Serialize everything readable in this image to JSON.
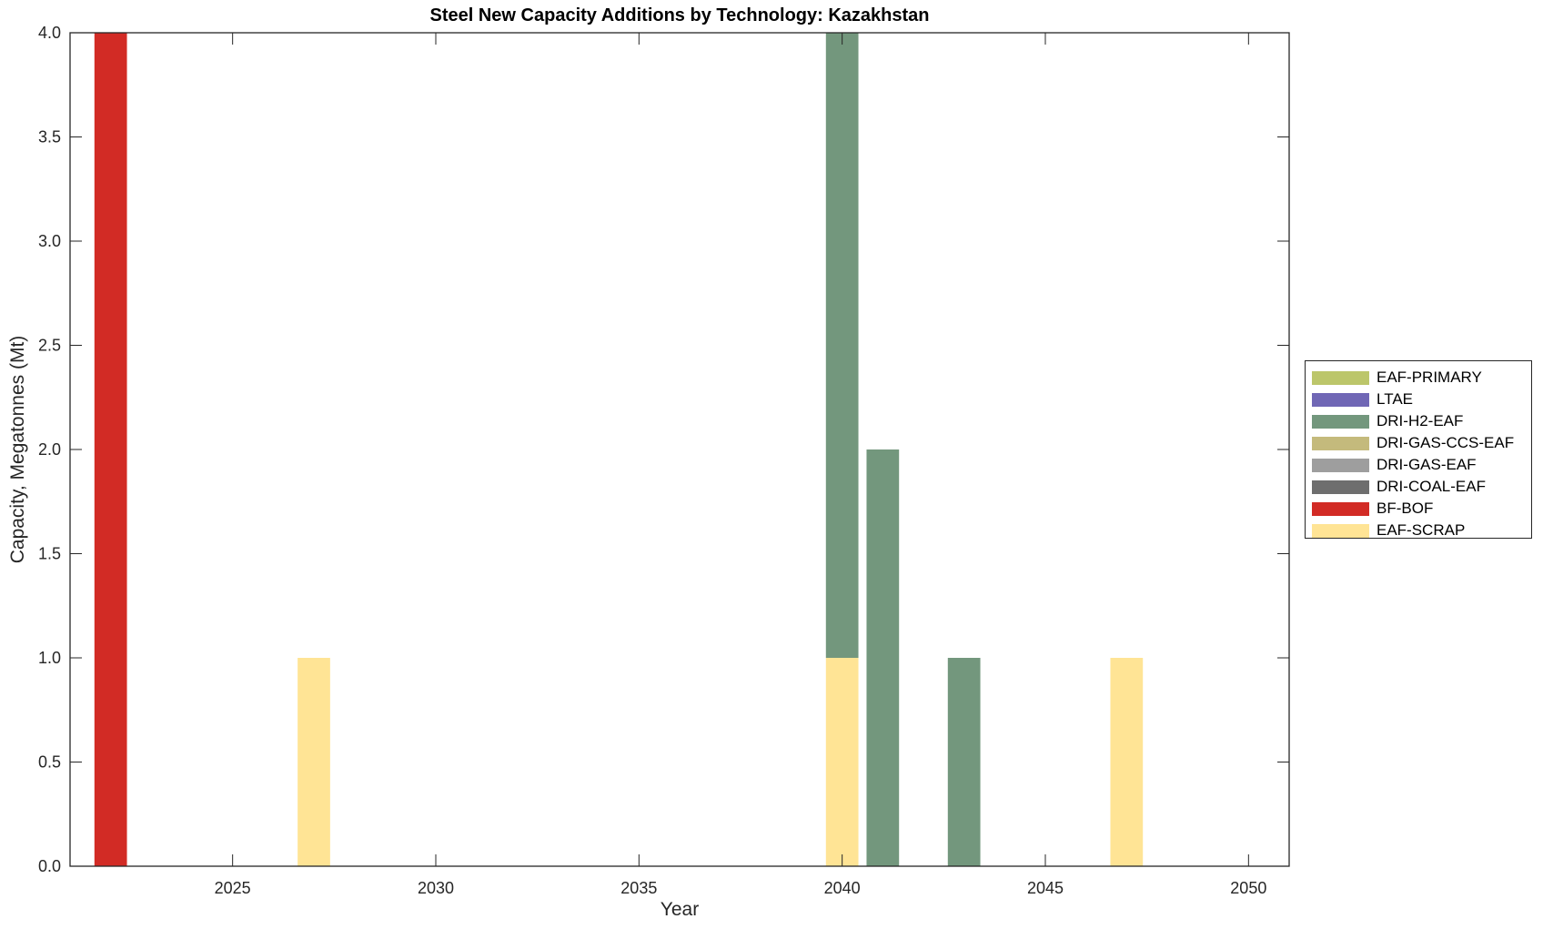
{
  "chart_data": {
    "type": "bar",
    "stacked": true,
    "title": "Steel New Capacity Additions by Technology: Kazakhstan",
    "xlabel": "Year",
    "ylabel": "Capacity, Megatonnes (Mt)",
    "xlim": [
      2021,
      2051
    ],
    "ylim": [
      0,
      4
    ],
    "xticks": [
      2025,
      2030,
      2035,
      2040,
      2045,
      2050
    ],
    "yticks": [
      "0.0",
      "0.5",
      "1.0",
      "1.5",
      "2.0",
      "2.5",
      "3.0",
      "3.5",
      "4.0"
    ],
    "grid": false,
    "legend_position": "right",
    "categories": [
      2022,
      2027,
      2040,
      2041,
      2043,
      2047
    ],
    "series": [
      {
        "name": "EAF-SCRAP",
        "color": "#FFE495",
        "values": [
          0,
          1,
          1,
          0,
          0,
          1
        ]
      },
      {
        "name": "BF-BOF",
        "color": "#D22B25",
        "values": [
          4,
          0,
          0,
          0,
          0,
          0
        ]
      },
      {
        "name": "DRI-COAL-EAF",
        "color": "#6E6E6E",
        "values": [
          0,
          0,
          0,
          0,
          0,
          0
        ]
      },
      {
        "name": "DRI-GAS-EAF",
        "color": "#9E9E9E",
        "values": [
          0,
          0,
          0,
          0,
          0,
          0
        ]
      },
      {
        "name": "DRI-GAS-CCS-EAF",
        "color": "#C4BA7C",
        "values": [
          0,
          0,
          0,
          0,
          0,
          0
        ]
      },
      {
        "name": "DRI-H2-EAF",
        "color": "#73977D",
        "values": [
          0,
          0,
          3,
          2,
          1,
          0
        ]
      },
      {
        "name": "LTAE",
        "color": "#7067B5",
        "values": [
          0,
          0,
          0,
          0,
          0,
          0
        ]
      },
      {
        "name": "EAF-PRIMARY",
        "color": "#BCC66A",
        "values": [
          0,
          0,
          0,
          0,
          0,
          0
        ]
      }
    ],
    "legend_order": [
      "EAF-PRIMARY",
      "LTAE",
      "DRI-H2-EAF",
      "DRI-GAS-CCS-EAF",
      "DRI-GAS-EAF",
      "DRI-COAL-EAF",
      "BF-BOF",
      "EAF-SCRAP"
    ]
  }
}
